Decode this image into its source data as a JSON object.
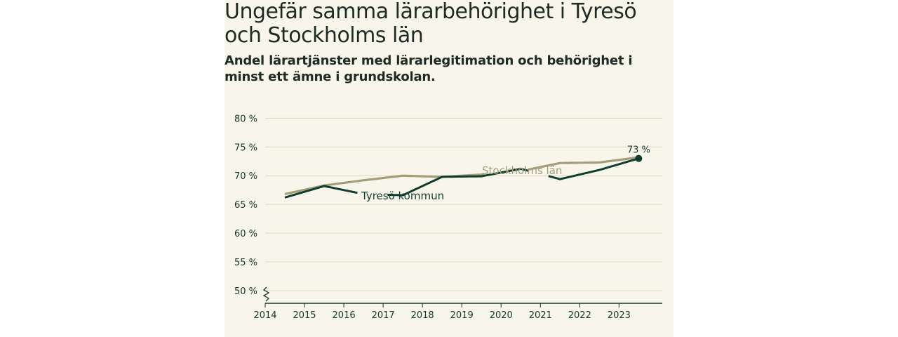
{
  "header": {
    "title": "Ungefär samma lärarbehörighet i Tyresö och Stockholms län",
    "subtitle": "Andel lärartjänster med lärarlegitimation och behörighet i minst ett ämne i grundskolan."
  },
  "colors": {
    "background": "#f8f6ea",
    "tyreso": "#0f3d2e",
    "stockholm": "#a39d7c",
    "grid": "#dcd9c8",
    "axis": "#14372b"
  },
  "chart_data": {
    "type": "line",
    "title": "Ungefär samma lärarbehörighet i Tyresö och Stockholms län",
    "subtitle": "Andel lärartjänster med lärarlegitimation och behörighet i minst ett ämne i grundskolan.",
    "xlabel": "",
    "ylabel": "",
    "x": [
      2014.5,
      2015.5,
      2016.5,
      2017.5,
      2018.5,
      2019.5,
      2020.5,
      2021.5,
      2022.5,
      2023.5
    ],
    "xticks": [
      2014,
      2015,
      2016,
      2017,
      2018,
      2019,
      2020,
      2021,
      2022,
      2023
    ],
    "xlim": [
      2014,
      2024.1
    ],
    "yticks": [
      50,
      55,
      60,
      65,
      70,
      75,
      80
    ],
    "ytick_labels": [
      "50 %",
      "55 %",
      "60 %",
      "65 %",
      "70 %",
      "75 %",
      "80 %"
    ],
    "ylim": [
      47.8,
      82
    ],
    "axis_break": true,
    "grid": true,
    "series": [
      {
        "name": "Stockholms län",
        "key": "stockholm",
        "values": [
          66.8,
          68.3,
          69.2,
          70.0,
          69.8,
          70.2,
          70.8,
          72.2,
          72.3,
          73.2
        ]
      },
      {
        "name": "Tyresö kommun",
        "key": "tyreso",
        "values": [
          66.2,
          68.2,
          66.8,
          66.6,
          69.8,
          69.9,
          71.2,
          69.4,
          71.0,
          73.0
        ]
      }
    ],
    "end_label": "73 %",
    "end_label_series": "tyreso"
  }
}
